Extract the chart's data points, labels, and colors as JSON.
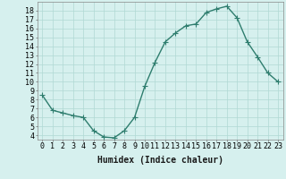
{
  "x": [
    0,
    1,
    2,
    3,
    4,
    5,
    6,
    7,
    8,
    9,
    10,
    11,
    12,
    13,
    14,
    15,
    16,
    17,
    18,
    19,
    20,
    21,
    22,
    23
  ],
  "y": [
    8.5,
    6.8,
    6.5,
    6.2,
    6.0,
    4.5,
    3.8,
    3.7,
    4.5,
    6.0,
    9.5,
    12.2,
    14.5,
    15.5,
    16.3,
    16.5,
    17.8,
    18.2,
    18.5,
    17.2,
    14.5,
    12.8,
    11.0,
    10.0
  ],
  "line_color": "#2e7d6e",
  "marker": "+",
  "marker_size": 4,
  "linewidth": 1.0,
  "xlabel": "Humidex (Indice chaleur)",
  "xlim": [
    -0.5,
    23.5
  ],
  "ylim": [
    3.5,
    19.0
  ],
  "yticks": [
    4,
    5,
    6,
    7,
    8,
    9,
    10,
    11,
    12,
    13,
    14,
    15,
    16,
    17,
    18
  ],
  "bg_color": "#d6f0ee",
  "grid_color": "#b0d8d4",
  "label_fontsize": 7,
  "tick_fontsize": 6
}
